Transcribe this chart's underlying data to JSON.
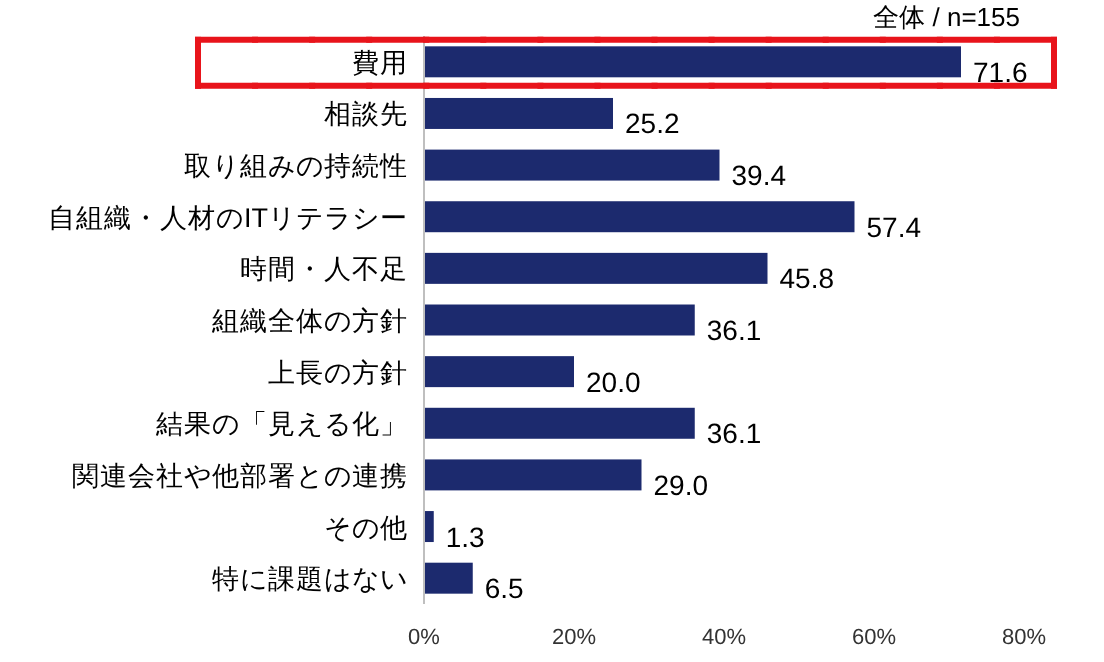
{
  "chart_data": {
    "type": "bar",
    "orientation": "horizontal",
    "title": "全体 / n=155",
    "categories": [
      "費用",
      "相談先",
      "取り組みの持続性",
      "自組織・人材のITリテラシー",
      "時間・人不足",
      "組織全体の方針",
      "上長の方針",
      "結果の「見える化」",
      "関連会社や他部署との連携",
      "その他",
      "特に課題はない"
    ],
    "values": [
      71.6,
      25.2,
      39.4,
      57.4,
      45.8,
      36.1,
      20.0,
      36.1,
      29.0,
      1.3,
      6.5
    ],
    "value_labels": [
      "71.6",
      "25.2",
      "39.4",
      "57.4",
      "45.8",
      "36.1",
      "20.0",
      "36.1",
      "29.0",
      "1.3",
      "6.5"
    ],
    "color": "#1c2a6e",
    "xlim": [
      0,
      80
    ],
    "xticks": [
      {
        "value": 0,
        "label": "0%"
      },
      {
        "value": 20,
        "label": "20%"
      },
      {
        "value": 40,
        "label": "40%"
      },
      {
        "value": 60,
        "label": "60%"
      },
      {
        "value": 80,
        "label": "80%"
      }
    ],
    "grid": false
  }
}
